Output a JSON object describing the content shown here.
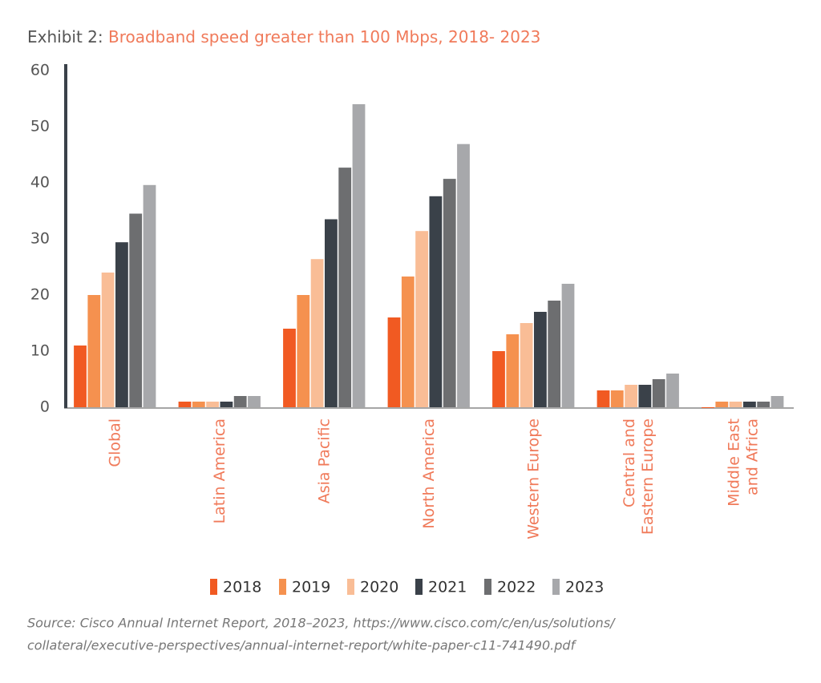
{
  "chart_data": {
    "type": "bar",
    "title_prefix": "Exhibit 2:",
    "title": "Broadband speed greater than 100 Mbps, 2018- 2023",
    "categories": [
      "Global",
      "Latin America",
      "Asia Pacific",
      "North America",
      "Western Europe",
      "Central and\nEastern Europe",
      "Middle East\nand Africa"
    ],
    "series": [
      {
        "name": "2018",
        "color": "#f15a22",
        "values": [
          11,
          1,
          14,
          16,
          10,
          3,
          0
        ]
      },
      {
        "name": "2019",
        "color": "#f5914f",
        "values": [
          20,
          1,
          20,
          23.3,
          13,
          3,
          1
        ]
      },
      {
        "name": "2020",
        "color": "#f9bd96",
        "values": [
          24,
          1,
          26.4,
          31.4,
          15,
          4,
          1
        ]
      },
      {
        "name": "2021",
        "color": "#3a4149",
        "values": [
          29.4,
          1,
          33.5,
          37.6,
          17,
          4,
          1
        ]
      },
      {
        "name": "2022",
        "color": "#6d6e70",
        "values": [
          34.5,
          2,
          42.7,
          40.7,
          19,
          5,
          1
        ]
      },
      {
        "name": "2023",
        "color": "#a7a8ab",
        "values": [
          39.6,
          2,
          54,
          46.9,
          22,
          6,
          2
        ]
      }
    ],
    "ylim": [
      0,
      60
    ],
    "yticks": [
      0,
      10,
      20,
      30,
      40,
      50,
      60
    ],
    "source": [
      "Source: Cisco Annual Internet Report, 2018–2023, https://www.cisco.com/c/en/us/solutions/",
      "collateral/executive-perspectives/annual-internet-report/white-paper-c11-741490.pdf"
    ]
  }
}
